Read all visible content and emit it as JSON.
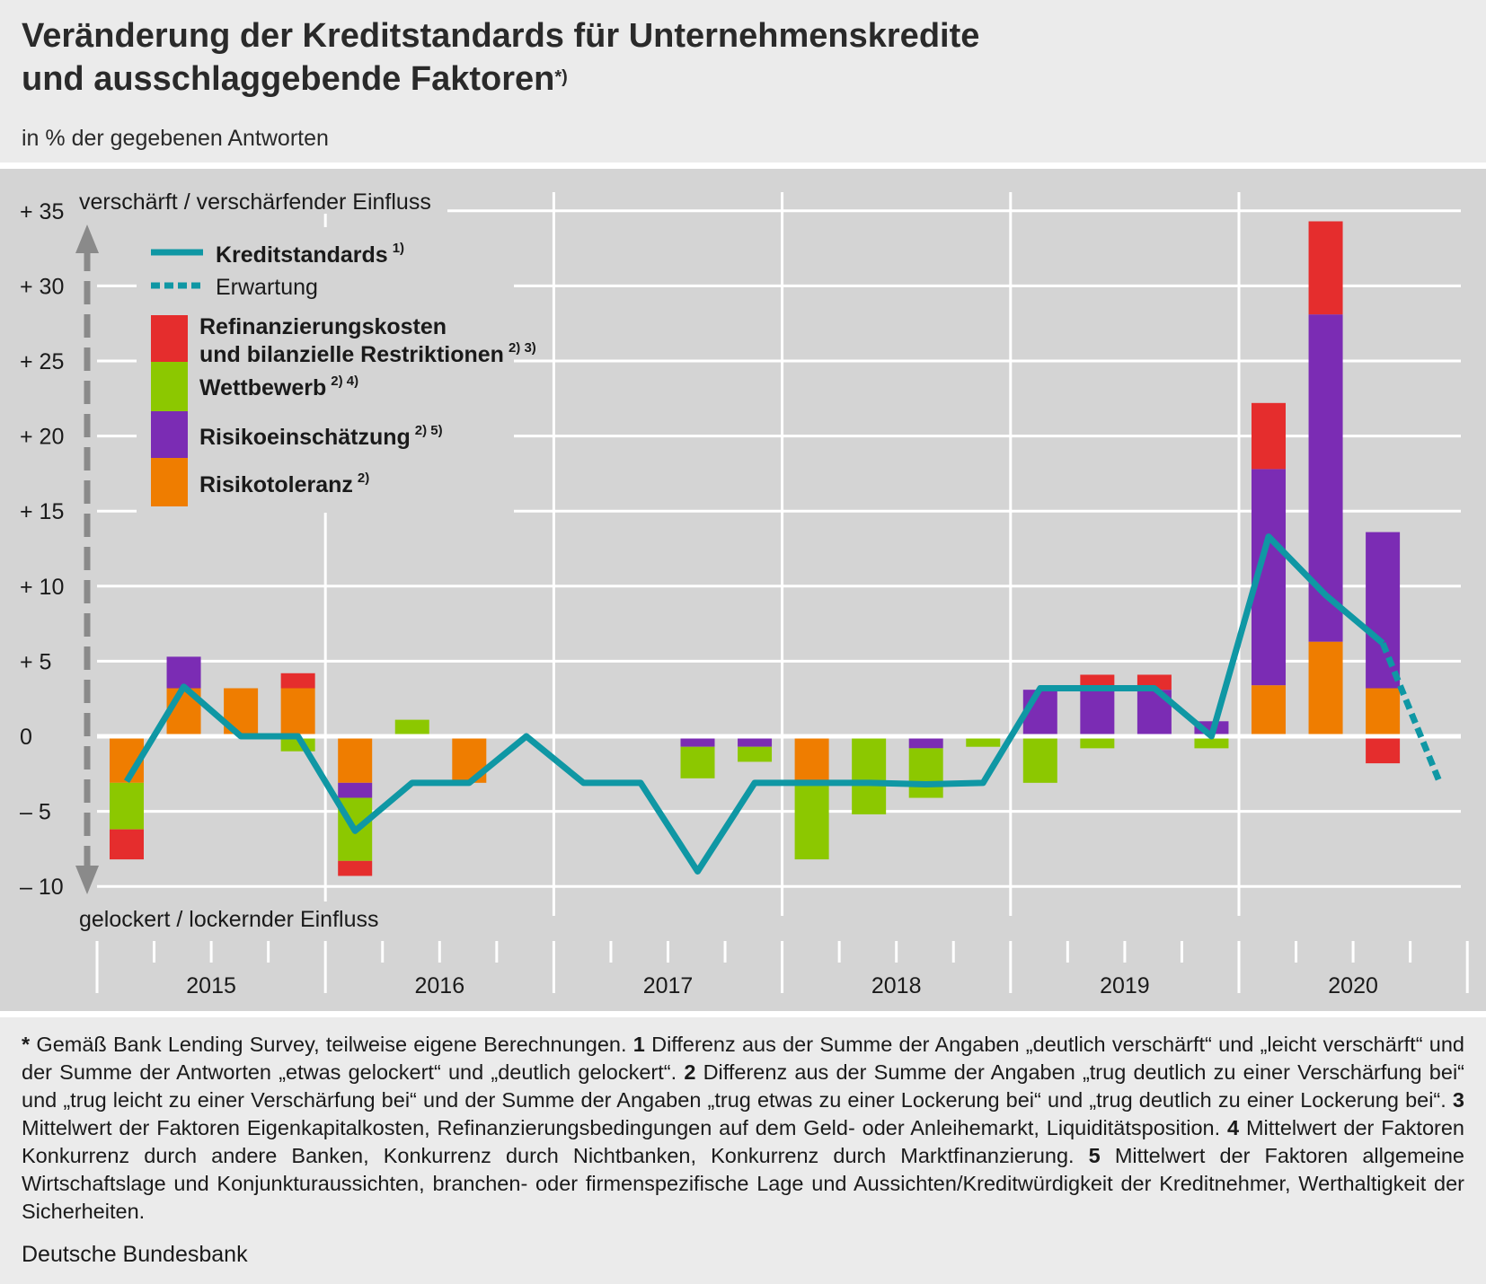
{
  "header": {
    "title_line1": "Veränderung der Kreditstandards für Unternehmenskredite",
    "title_line2": "und ausschlaggebende Faktoren",
    "title_mark": "*)",
    "subtitle": "in % der gegebenen Antworten"
  },
  "chart_data": {
    "type": "bar",
    "stacked": true,
    "ylim": [
      -10,
      35
    ],
    "yticks": [
      35,
      30,
      25,
      20,
      15,
      10,
      5,
      0,
      -5,
      -10
    ],
    "ytick_labels": [
      "+ 35",
      "+ 30",
      "+ 25",
      "+ 20",
      "+ 15",
      "+ 10",
      "+  5",
      "0",
      "–  5",
      "– 10"
    ],
    "axis_top_label": "verschärft / verschärfender Einfluss",
    "axis_bottom_label": "gelockert / lockernder Einfluss",
    "years": [
      "2015",
      "2016",
      "2017",
      "2018",
      "2019",
      "2020"
    ],
    "quarters": [
      "2015Q1",
      "2015Q2",
      "2015Q3",
      "2015Q4",
      "2016Q1",
      "2016Q2",
      "2016Q3",
      "2016Q4",
      "2017Q1",
      "2017Q2",
      "2017Q3",
      "2017Q4",
      "2018Q1",
      "2018Q2",
      "2018Q3",
      "2018Q4",
      "2019Q1",
      "2019Q2",
      "2019Q3",
      "2019Q4",
      "2020Q1",
      "2020Q2",
      "2020Q3",
      "2020Q4"
    ],
    "line_series": [
      {
        "name": "Kreditstandards",
        "sup": "1)",
        "color": "#0f97a4",
        "values": [
          -3,
          3.3,
          0,
          0,
          -6.3,
          -3.1,
          -3.1,
          0,
          -3.1,
          -3.1,
          -9,
          -3.1,
          -3.1,
          -3.1,
          -3.2,
          -3.1,
          3.2,
          3.2,
          3.2,
          0,
          13.3,
          9.4,
          6.2,
          null
        ]
      },
      {
        "name": "Erwartung",
        "sup": "",
        "color": "#0f97a4",
        "dashed": true,
        "values": [
          null,
          null,
          null,
          null,
          null,
          null,
          null,
          null,
          null,
          null,
          null,
          null,
          null,
          null,
          null,
          null,
          null,
          null,
          null,
          null,
          null,
          null,
          6.2,
          -3.1
        ]
      }
    ],
    "series": [
      {
        "name": "Risikotoleranz",
        "sup": "2)",
        "color": "#ef7d00",
        "values": [
          -3.1,
          3.2,
          3.2,
          3.2,
          -3.1,
          0,
          -3.1,
          0,
          0,
          0,
          0,
          0,
          -3.1,
          0,
          0,
          0,
          0,
          0,
          0,
          0,
          3.4,
          6.3,
          3.2,
          0
        ]
      },
      {
        "name": "Risikoeinschätzung",
        "sup": "2) 5)",
        "color": "#7b2cb4",
        "values": [
          0,
          2.1,
          0,
          0,
          -1.0,
          0,
          0,
          0,
          0,
          0,
          -0.7,
          -0.7,
          0,
          0,
          -0.8,
          0,
          3.1,
          3.1,
          3.1,
          1.0,
          14.4,
          21.8,
          10.4,
          0
        ]
      },
      {
        "name": "Wettbewerb",
        "sup": "2) 4)",
        "color": "#8cc800",
        "values": [
          -3.1,
          0,
          0,
          -1.0,
          -4.2,
          1.1,
          0,
          0,
          0,
          0,
          -2.1,
          -1.0,
          -5.1,
          -5.2,
          -3.3,
          -0.7,
          -3.1,
          -0.8,
          0,
          -0.8,
          0,
          0,
          0,
          0
        ]
      },
      {
        "name": "Refinanzierungskosten und bilanzielle Restriktionen",
        "sup": "2) 3)",
        "color": "#e52d2d",
        "values": [
          -2.0,
          0,
          0,
          1.0,
          -1.0,
          0,
          0,
          0,
          0,
          0,
          0,
          0,
          0,
          0,
          0,
          0,
          0,
          1.0,
          1.0,
          0,
          4.4,
          6.2,
          -1.8,
          0
        ]
      }
    ]
  },
  "legend": {
    "line_label": "Kreditstandards",
    "line_sup": "1)",
    "expect_label": "Erwartung",
    "refi_label_1": "Refinanzierungskosten",
    "refi_label_2": "und bilanzielle Restriktionen",
    "refi_sup": "2) 3)",
    "wett_label": "Wettbewerb",
    "wett_sup": "2) 4)",
    "risk_label": "Risikoeinschätzung",
    "risk_sup": "2) 5)",
    "tol_label": "Risikotoleranz",
    "tol_sup": "2)"
  },
  "footnotes": [
    {
      "mark": "*",
      "text": " Gemäß Bank Lending Survey, teilweise eigene Berechnungen. "
    },
    {
      "mark": "1",
      "text": " Differenz aus der Summe der Angaben „deutlich verschärft“ und „leicht verschärft“ und der Summe der Antworten „etwas gelockert“ und „deutlich gelockert“. "
    },
    {
      "mark": "2",
      "text": " Differenz aus der Summe der Angaben „trug deutlich zu einer Verschärfung bei“ und „trug leicht zu einer Verschärfung bei“ und der Summe der Angaben „trug etwas zu einer Lockerung bei“ und „trug deutlich zu einer Lockerung bei“. "
    },
    {
      "mark": "3",
      "text": " Mittelwert der Faktoren Eigenkapitalkosten, Refinanzierungsbedingungen auf dem Geld- oder Anleihemarkt, Liquiditätsposition. "
    },
    {
      "mark": "4",
      "text": " Mittelwert der Faktoren Konkurrenz durch andere Banken, Konkurrenz durch Nichtbanken, Konkurrenz durch Marktfinanzierung. "
    },
    {
      "mark": "5",
      "text": " Mittelwert der Faktoren allgemeine Wirtschaftslage und Konjunkturaussichten, branchen- oder firmenspezifische Lage und Aussichten/Kreditwürdigkeit der Kreditnehmer, Werthaltigkeit der Sicherheiten."
    }
  ],
  "source": "Deutsche Bundesbank"
}
